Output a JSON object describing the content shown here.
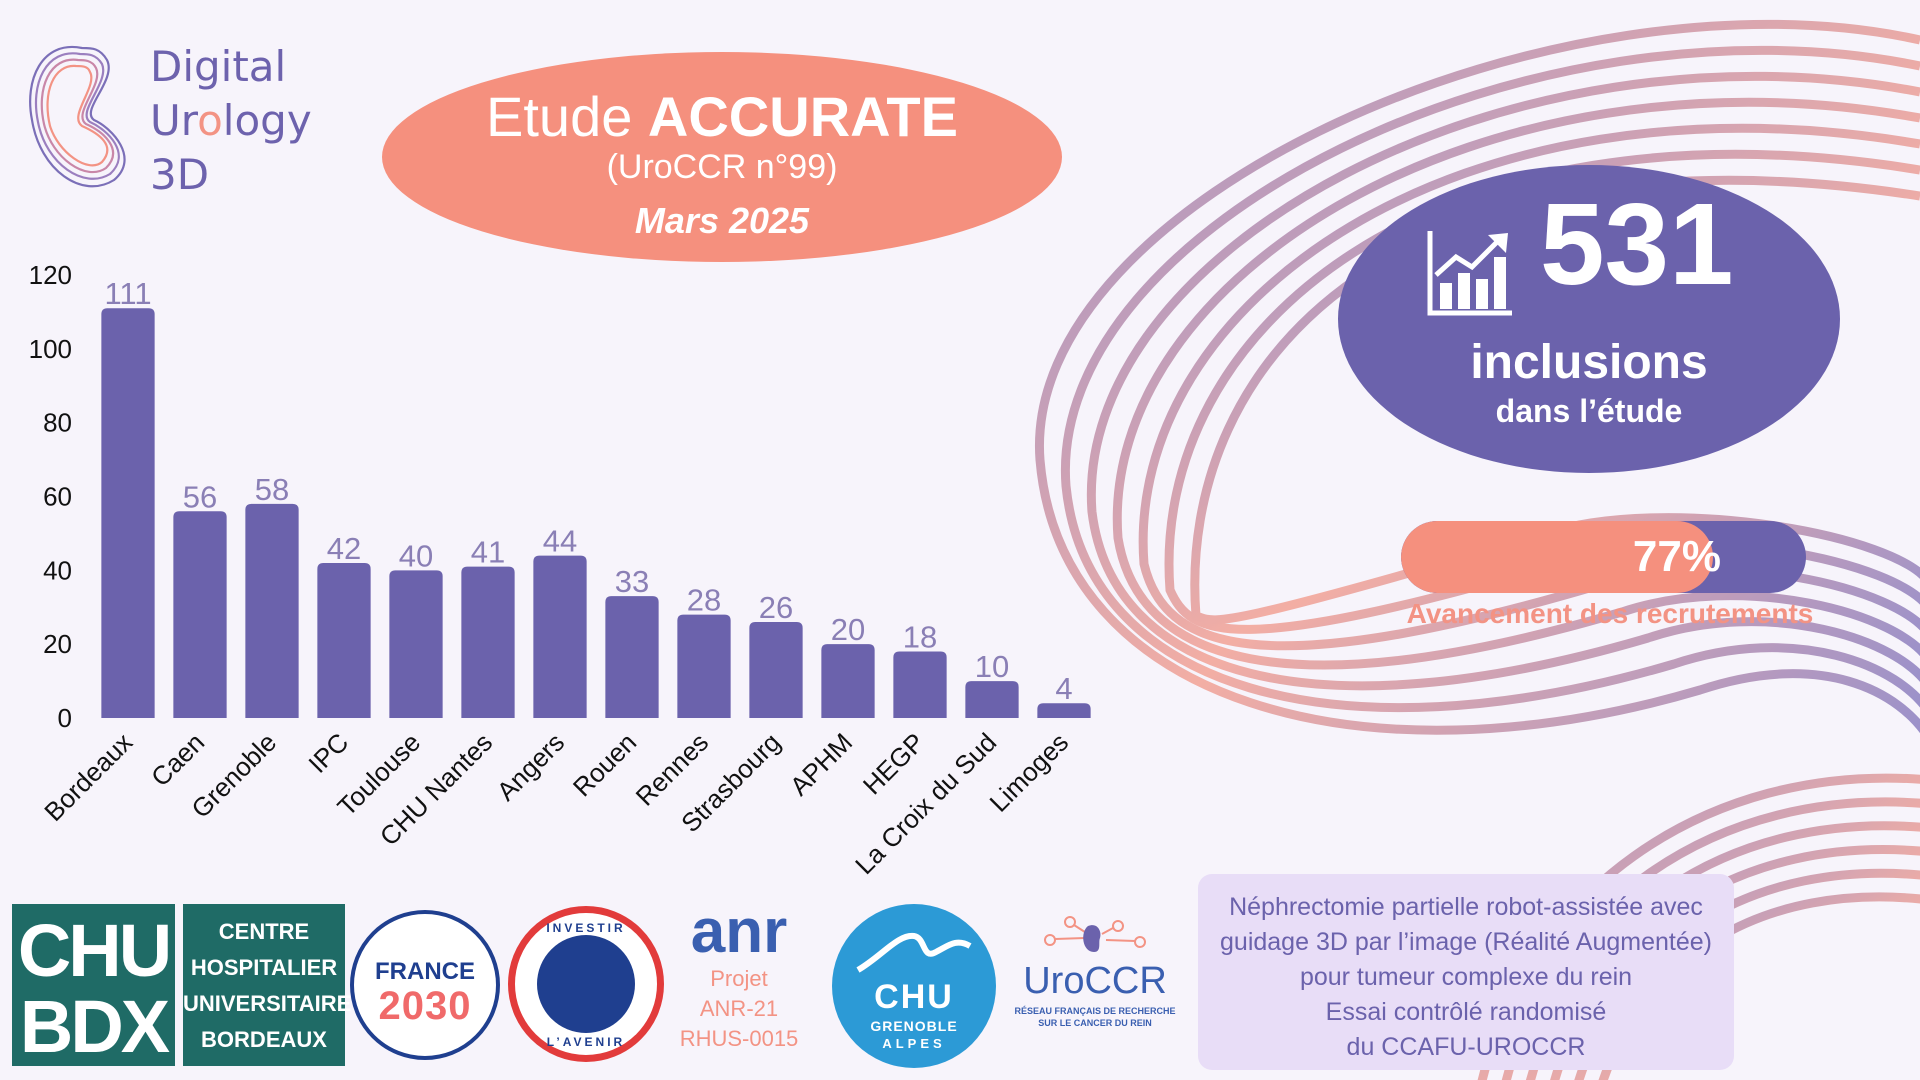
{
  "logo": {
    "line1": "Digital",
    "line2_pre": "Ur",
    "line2_accent": "o",
    "line2_post": "logy",
    "line3": "3D"
  },
  "title": {
    "prefix": "Etude ",
    "bold": "ACCURATE",
    "subtitle": "(UroCCR n°99)",
    "date": "Mars 2025"
  },
  "inclusions": {
    "number": "531",
    "label": "inclusions",
    "sub": "dans l’étude"
  },
  "progress": {
    "text": "77%",
    "value": 0.77,
    "label": "Avancement des recrutements"
  },
  "description": [
    "Néphrectomie partielle robot-assistée avec",
    "guidage 3D par l’image (Réalité Augmentée)",
    "pour tumeur complexe du rein",
    "Essai contrôlé randomisé",
    "du CCAFU-UROCCR"
  ],
  "partners": {
    "chu_bdx": {
      "l1": "CHU",
      "l2": "BDX"
    },
    "chu_bordeaux": [
      "CENTRE",
      "HOSPITALIER",
      "UNIVERSITAIRE",
      "BORDEAUX"
    ],
    "france2030": {
      "t1": "FRANCE",
      "t2": "2030"
    },
    "investir": {
      "t1": "INVESTIR",
      "t2": "L’AVENIR"
    },
    "anr": {
      "name": "anr",
      "p1": "Projet",
      "p2": "ANR-21",
      "p3": "RHUS-0015"
    },
    "chu_grenoble": {
      "t1": "CHU",
      "t2": "GRENOBLE",
      "t3": "ALPES"
    },
    "urocr": {
      "name": "UroCCR",
      "s1": "RÉSEAU FRANÇAIS DE RECHERCHE",
      "s2": "SUR LE CANCER DU REIN"
    }
  },
  "colors": {
    "primary": "#6b62ac",
    "accent": "#f5907e",
    "background": "#f7f4fb"
  },
  "chart_data": {
    "type": "bar",
    "categories": [
      "Bordeaux",
      "Caen",
      "Grenoble",
      "IPC",
      "Toulouse",
      "CHU Nantes",
      "Angers",
      "Rouen",
      "Rennes",
      "Strasbourg",
      "APHM",
      "HEGP",
      "La Croix du Sud",
      "Limoges"
    ],
    "values": [
      111,
      56,
      58,
      42,
      40,
      41,
      44,
      33,
      28,
      26,
      20,
      18,
      10,
      4
    ],
    "yticks": [
      0,
      20,
      40,
      60,
      80,
      100,
      120
    ],
    "ylim": [
      0,
      120
    ],
    "grid": false,
    "bar_color": "#6b62ac",
    "label_color": "#8a7fb5"
  }
}
